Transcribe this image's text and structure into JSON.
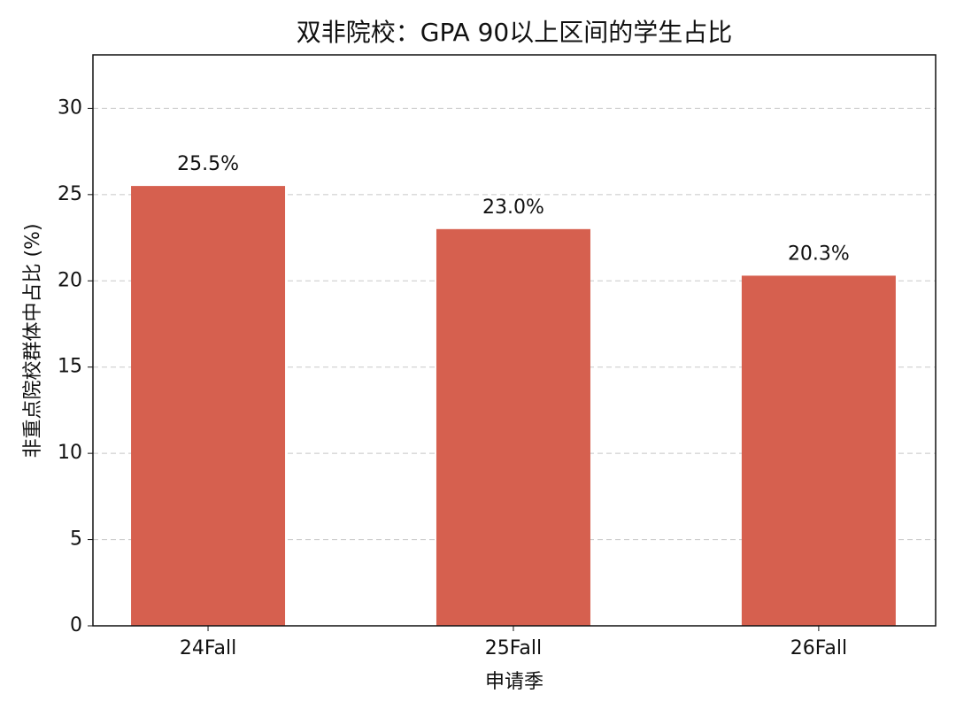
{
  "chart_data": {
    "type": "bar",
    "title": "双非院校：GPA 90以上区间的学生占比",
    "x_label": "申请季",
    "y_label": "非重点院校群体中占比 (%)",
    "categories": [
      "24Fall",
      "25Fall",
      "26Fall"
    ],
    "values": [
      25.5,
      23.0,
      20.3
    ],
    "value_labels": [
      "25.5%",
      "23.0%",
      "20.3%"
    ],
    "color": "#d6604f",
    "ylim": [
      0,
      33.1
    ],
    "yticks": [
      0,
      5,
      10,
      15,
      20,
      25,
      30
    ],
    "grid": true
  }
}
